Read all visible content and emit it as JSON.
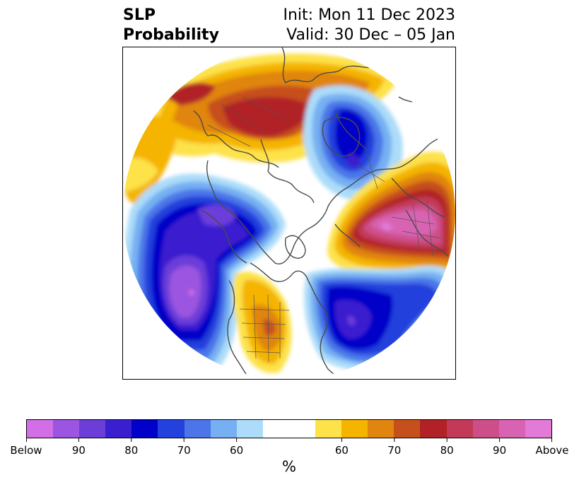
{
  "title": {
    "left_line1": "SLP",
    "left_line2": "Probability",
    "right_line1": "Init: Mon 11 Dec 2023",
    "right_line2": "Valid: 30 Dec – 05 Jan"
  },
  "colorbar": {
    "colors": [
      "#d26fe6",
      "#9b55e0",
      "#6c3ed8",
      "#3a1fcf",
      "#0000c8",
      "#2341dc",
      "#4c76e8",
      "#76b0f2",
      "#acdcf9",
      "#ffffff",
      "#ffffff",
      "#fde24a",
      "#f4b400",
      "#e08510",
      "#c6501c",
      "#b12226",
      "#c23a58",
      "#cd4f8a",
      "#d863b2",
      "#e37ad8"
    ],
    "labels": [
      "Below",
      "90",
      "80",
      "70",
      "60",
      "60",
      "70",
      "80",
      "90",
      "Above"
    ],
    "unit": "%"
  },
  "map": {
    "projection": "north-polar-stereographic",
    "regions": [
      {
        "name": "north-pacific-low",
        "category": "below-normal",
        "peak": "Below"
      },
      {
        "name": "aleutian-low",
        "category": "below-normal",
        "peak": "90"
      },
      {
        "name": "arctic-low",
        "category": "below-normal",
        "peak": "80"
      },
      {
        "name": "north-atlantic-low",
        "category": "below-normal",
        "peak": "90"
      },
      {
        "name": "europe-high",
        "category": "above-normal",
        "peak": "Above"
      },
      {
        "name": "siberia-high",
        "category": "above-normal",
        "peak": "80"
      },
      {
        "name": "us-high",
        "category": "above-normal",
        "peak": "70"
      }
    ]
  }
}
